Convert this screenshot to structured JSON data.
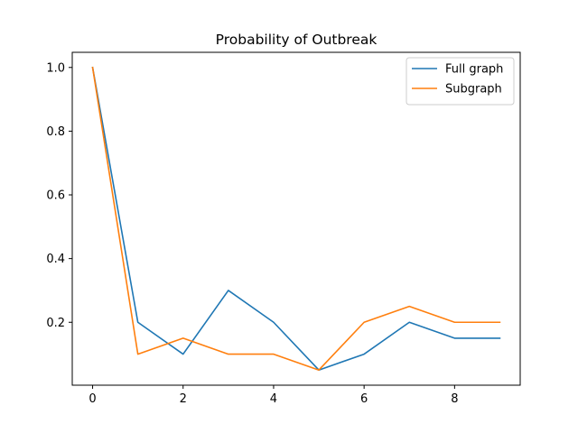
{
  "chart_data": {
    "type": "line",
    "title": "Probability of Outbreak",
    "xlabel": "",
    "ylabel": "",
    "xlim": [
      -0.45,
      9.45
    ],
    "ylim": [
      0.0025,
      1.0475
    ],
    "xticks": [
      0,
      2,
      4,
      6,
      8
    ],
    "xtick_labels": [
      "0",
      "2",
      "4",
      "6",
      "8"
    ],
    "yticks": [
      0.2,
      0.4,
      0.6,
      0.8,
      1.0
    ],
    "ytick_labels": [
      "0.2",
      "0.4",
      "0.6",
      "0.8",
      "1.0"
    ],
    "grid": false,
    "legend_position": "top-right",
    "x": [
      0,
      1,
      2,
      3,
      4,
      5,
      6,
      7,
      8,
      9
    ],
    "series": [
      {
        "name": "Full graph",
        "color": "#1f77b4",
        "values": [
          1.0,
          0.2,
          0.1,
          0.3,
          0.2,
          0.05,
          0.1,
          0.2,
          0.15,
          0.15
        ]
      },
      {
        "name": "Subgraph",
        "color": "#ff7f0e",
        "values": [
          1.0,
          0.1,
          0.15,
          0.1,
          0.1,
          0.05,
          0.2,
          0.25,
          0.2,
          0.2
        ]
      }
    ]
  }
}
